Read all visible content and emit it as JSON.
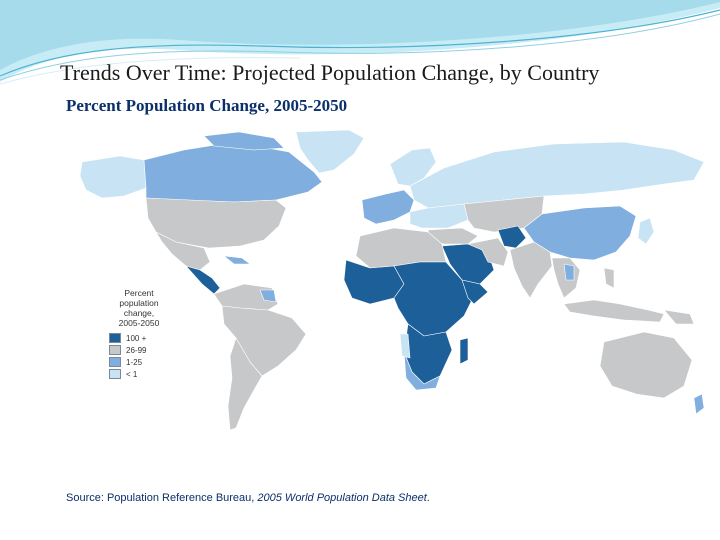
{
  "slide": {
    "title": "Trends Over Time: Projected Population Change, by Country",
    "subtitle": "Percent Population Change, 2005-2050"
  },
  "legend": {
    "title_lines": [
      "Percent",
      "population",
      "change,",
      "2005-2050"
    ],
    "items": [
      {
        "label": "100 +",
        "color": "#1d5f98"
      },
      {
        "label": "26-99",
        "color": "#c7c8ca"
      },
      {
        "label": "1-25",
        "color": "#80aede"
      },
      {
        "label": "< 1",
        "color": "#c7e3f4"
      }
    ]
  },
  "source": {
    "prefix": "Source: Population Reference Bureau, ",
    "italic": "2005 World Population Data Sheet",
    "suffix": "."
  },
  "colors": {
    "dark": "#1d5f98",
    "gray": "#c7c8ca",
    "mid": "#80aede",
    "light": "#c7e3f4",
    "border": "#ffffff",
    "title_blue": "#0b2f6a"
  }
}
